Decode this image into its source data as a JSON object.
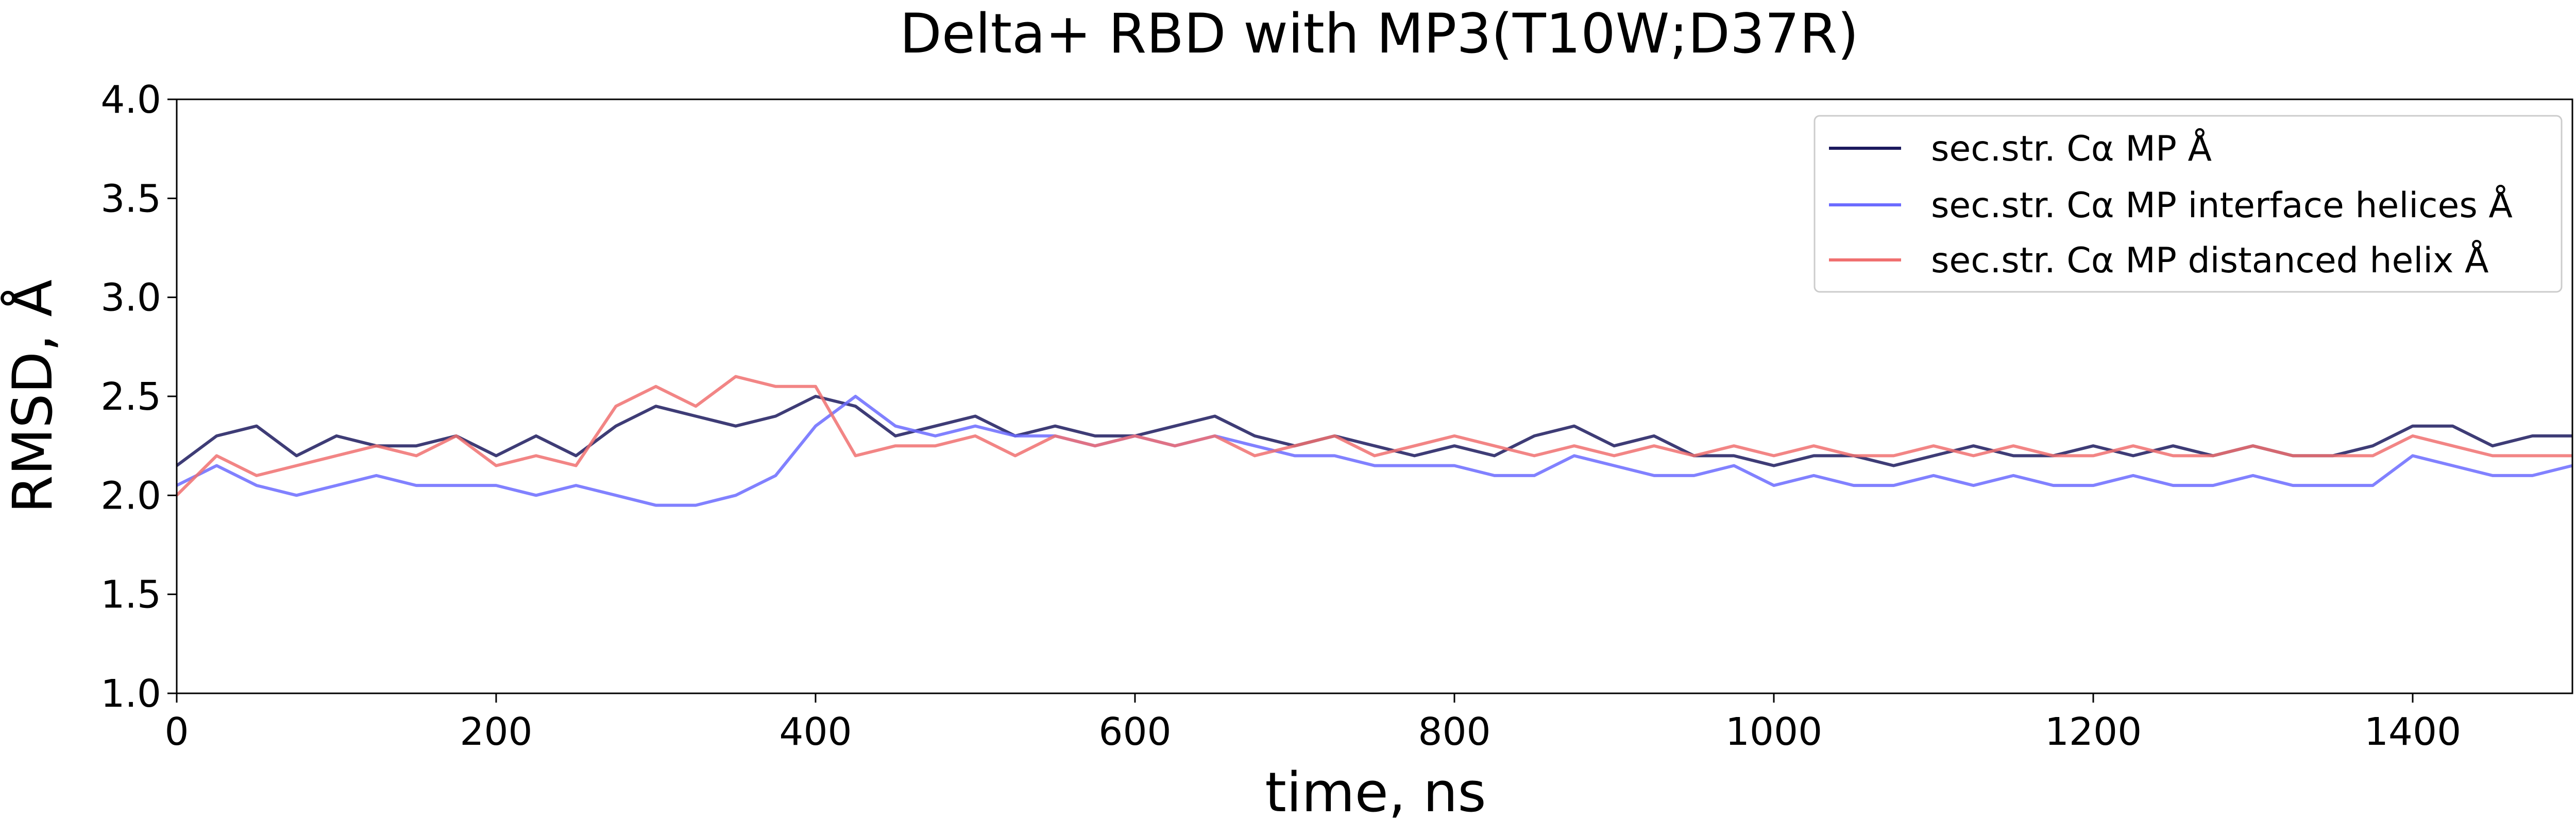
{
  "chart_data": {
    "type": "line",
    "title": "Delta+ RBD with MP3(T10W;D37R)",
    "xlabel": "time, ns",
    "ylabel": "RMSD, Å",
    "xlim": [
      0,
      1500
    ],
    "ylim": [
      1.0,
      4.0
    ],
    "xticks": [
      0,
      200,
      400,
      600,
      800,
      1000,
      1200,
      1400
    ],
    "xtick_labels": [
      "0",
      "200",
      "400",
      "600",
      "800",
      "1000",
      "1200",
      "1400"
    ],
    "yticks": [
      1.0,
      1.5,
      2.0,
      2.5,
      3.0,
      3.5,
      4.0
    ],
    "ytick_labels": [
      "1.0",
      "1.5",
      "2.0",
      "2.5",
      "3.0",
      "3.5",
      "4.0"
    ],
    "grid": false,
    "legend_position": "top-right",
    "x": [
      0,
      25,
      50,
      75,
      100,
      125,
      150,
      175,
      200,
      225,
      250,
      275,
      300,
      325,
      350,
      375,
      400,
      425,
      450,
      475,
      500,
      525,
      550,
      575,
      600,
      625,
      650,
      675,
      700,
      725,
      750,
      775,
      800,
      825,
      850,
      875,
      900,
      925,
      950,
      975,
      1000,
      1025,
      1050,
      1075,
      1100,
      1125,
      1150,
      1175,
      1200,
      1225,
      1250,
      1275,
      1300,
      1325,
      1350,
      1375,
      1400,
      1425,
      1450,
      1475,
      1500
    ],
    "series": [
      {
        "name": "sec.str. Cα MP Å",
        "color": "#1c1a5e",
        "values": [
          2.15,
          2.3,
          2.35,
          2.2,
          2.3,
          2.25,
          2.25,
          2.3,
          2.2,
          2.3,
          2.2,
          2.35,
          2.45,
          2.4,
          2.35,
          2.4,
          2.5,
          2.45,
          2.3,
          2.35,
          2.4,
          2.3,
          2.35,
          2.3,
          2.3,
          2.35,
          2.4,
          2.3,
          2.25,
          2.3,
          2.25,
          2.2,
          2.25,
          2.2,
          2.3,
          2.35,
          2.25,
          2.3,
          2.2,
          2.2,
          2.15,
          2.2,
          2.2,
          2.15,
          2.2,
          2.25,
          2.2,
          2.2,
          2.25,
          2.2,
          2.25,
          2.2,
          2.25,
          2.2,
          2.2,
          2.25,
          2.35,
          2.35,
          2.25,
          2.3,
          2.3
        ]
      },
      {
        "name": "sec.str. Cα MP interface helices Å",
        "color": "#6b6bff",
        "values": [
          2.05,
          2.15,
          2.05,
          2.0,
          2.05,
          2.1,
          2.05,
          2.05,
          2.05,
          2.0,
          2.05,
          2.0,
          1.95,
          1.95,
          2.0,
          2.1,
          2.35,
          2.5,
          2.35,
          2.3,
          2.35,
          2.3,
          2.3,
          2.25,
          2.3,
          2.25,
          2.3,
          2.25,
          2.2,
          2.2,
          2.15,
          2.15,
          2.15,
          2.1,
          2.1,
          2.2,
          2.15,
          2.1,
          2.1,
          2.15,
          2.05,
          2.1,
          2.05,
          2.05,
          2.1,
          2.05,
          2.1,
          2.05,
          2.05,
          2.1,
          2.05,
          2.05,
          2.1,
          2.05,
          2.05,
          2.05,
          2.2,
          2.15,
          2.1,
          2.1,
          2.15
        ]
      },
      {
        "name": "sec.str. Cα MP distanced helix Å",
        "color": "#f07070",
        "values": [
          2.0,
          2.2,
          2.1,
          2.15,
          2.2,
          2.25,
          2.2,
          2.3,
          2.15,
          2.2,
          2.15,
          2.45,
          2.55,
          2.45,
          2.6,
          2.55,
          2.55,
          2.2,
          2.25,
          2.25,
          2.3,
          2.2,
          2.3,
          2.25,
          2.3,
          2.25,
          2.3,
          2.2,
          2.25,
          2.3,
          2.2,
          2.25,
          2.3,
          2.25,
          2.2,
          2.25,
          2.2,
          2.25,
          2.2,
          2.25,
          2.2,
          2.25,
          2.2,
          2.2,
          2.25,
          2.2,
          2.25,
          2.2,
          2.2,
          2.25,
          2.2,
          2.2,
          2.25,
          2.2,
          2.2,
          2.2,
          2.3,
          2.25,
          2.2,
          2.2,
          2.2
        ]
      }
    ]
  }
}
